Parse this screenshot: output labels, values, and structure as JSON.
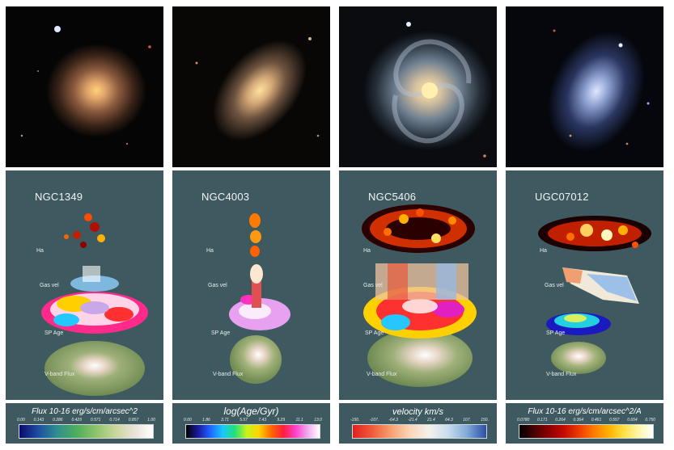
{
  "galaxies": [
    {
      "name": "NGC1349",
      "labels": {
        "ha": "Ha",
        "gas_vel": "Gas vel",
        "sp_age": "SP Age",
        "vband": "V-band Flux"
      },
      "colorbar": {
        "title": "Flux 10-16 erg/s/cm/arcsec^2",
        "ticks": [
          "0.00",
          "0.143",
          "0.286",
          "0.429",
          "0.571",
          "0.714",
          "0.857",
          "1.00"
        ],
        "gradient": "linear-gradient(to right, #0a0a6e, #1e4fa0, #2f8f8f, #4fae5a, #8cc46a, #c9d59a, #e8e2d6, #ffffff)"
      }
    },
    {
      "name": "NGC4003",
      "labels": {
        "ha": "Ha",
        "gas_vel": "Gas vel",
        "sp_age": "SP Age",
        "vband": "V-band Flux"
      },
      "colorbar": {
        "title": "log(Age/Gyr)",
        "ticks": [
          "0.00",
          "1.86",
          "3.71",
          "5.57",
          "7.43",
          "9.29",
          "11.1",
          "13.0"
        ],
        "gradient": "linear-gradient(to right, #000000, #1a1aa0, #1f66ff, #19c6ff, #22e07a, #c8f21a, #ffd400, #ff6a00, #ff1f3a, #ff3fc8, #f2a8f2, #ffffff)"
      }
    },
    {
      "name": "NGC5406",
      "labels": {
        "ha": "Ha",
        "gas_vel": "Gas vel",
        "sp_age": "SP Age",
        "vband": "V-band Flux"
      },
      "colorbar": {
        "title": "velocity km/s",
        "ticks": [
          "-150.",
          "-107.",
          "-64.3",
          "-21.4",
          "21.4",
          "64.3",
          "107.",
          "150."
        ],
        "gradient": "linear-gradient(to right, #e02020, #f05a3a, #f7a070, #fbd6b8, #f4f1ea, #c8ddee, #7fa9d6, #2c4fa6)"
      }
    },
    {
      "name": "UGC07012",
      "labels": {
        "ha": "Ha",
        "gas_vel": "Gas vel",
        "sp_age": "SP Age",
        "vband": "V-band Flux"
      },
      "colorbar": {
        "title": "Flux 10-16 erg/s/cm/arcsec^2/A",
        "ticks": [
          "0.0780",
          "0.171",
          "0.264",
          "0.364",
          "0.461",
          "0.557",
          "0.654",
          "0.750"
        ],
        "gradient": "linear-gradient(to right, #000000, #4a0000, #8c0000, #c40a00, #ec3a00, #ff7a00, #ffb000, #ffe040, #fff6a8, #ffffff)"
      }
    }
  ]
}
